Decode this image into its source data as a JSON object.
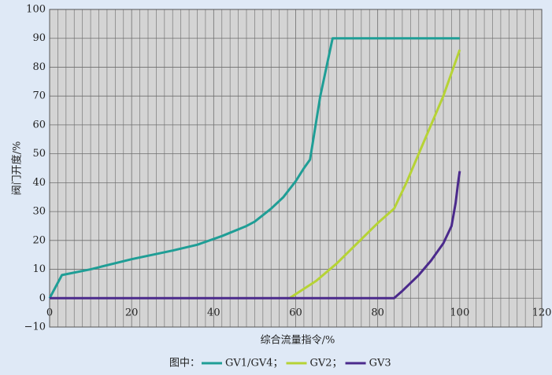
{
  "chart_data": {
    "type": "line",
    "xlabel": "综合流量指令/%",
    "ylabel": "阀门开度/%",
    "xlim": [
      0,
      120
    ],
    "xticks": [
      0,
      20,
      40,
      60,
      80,
      100,
      120
    ],
    "ylim": [
      -10,
      100
    ],
    "yticks": [
      {
        "value": -10,
        "label": "−10"
      },
      0,
      10,
      20,
      30,
      40,
      50,
      60,
      70,
      80,
      90,
      100
    ],
    "grid": true,
    "legend_prefix": "图中：",
    "legend_separator": "；",
    "series": [
      {
        "name": "GV1/GV4",
        "color": "#1f9e96",
        "x": [
          0,
          3,
          10,
          20,
          30,
          36,
          42,
          48,
          50,
          54,
          57,
          60,
          62,
          63.5,
          66,
          69,
          100
        ],
        "values": [
          0,
          8,
          10,
          13.5,
          16.5,
          18.5,
          21.5,
          25,
          26.5,
          31,
          35,
          40.5,
          45,
          48,
          70,
          90,
          90
        ]
      },
      {
        "name": "GV2",
        "color": "#b6d335",
        "x": [
          58.5,
          65,
          70,
          75,
          80,
          84,
          87,
          90,
          93,
          96,
          100
        ],
        "values": [
          0,
          6,
          12,
          19,
          26,
          31,
          40,
          50,
          60,
          70,
          86
        ]
      },
      {
        "name": "GV3",
        "color": "#4b2a8c",
        "x": [
          0,
          84,
          86,
          90,
          93,
          96,
          98,
          99,
          99.6,
          100
        ],
        "values": [
          0,
          0,
          2.5,
          8,
          13,
          19,
          25,
          33,
          40,
          44
        ]
      }
    ]
  }
}
